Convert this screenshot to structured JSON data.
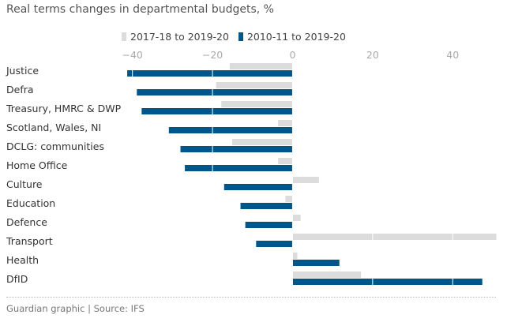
{
  "title": "Real terms changes in departmental budgets, %",
  "colors": {
    "series1": "#dcdcdc",
    "series2": "#005689",
    "text": "#333333",
    "tick": "#aaaaaa",
    "gridline": "#ffffff"
  },
  "footer": "Guardian graphic | Source: IFS",
  "chart_data": {
    "type": "bar",
    "orientation": "horizontal",
    "title": "Real terms changes in departmental budgets, %",
    "categories": [
      "Justice",
      "Defra",
      "Treasury, HMRC & DWP",
      "Scotland, Wales, NI",
      "DCLG: communities",
      "Home Office",
      "Culture",
      "Education",
      "Defence",
      "Transport",
      "Health",
      "DfID"
    ],
    "series": [
      {
        "name": "2017-18 to 2019-20",
        "color": "#dcdcdc",
        "values": [
          -15.7,
          -19.1,
          -17.8,
          -3.6,
          -15.1,
          -3.6,
          6.6,
          -1.8,
          2.0,
          50.9,
          1.2,
          17.1
        ]
      },
      {
        "name": "2010-11 to 2019-20",
        "color": "#005689",
        "values": [
          -41.3,
          -38.9,
          -37.7,
          -30.9,
          -28.0,
          -26.9,
          -17.1,
          -13.0,
          -11.8,
          -9.1,
          11.7,
          47.4
        ]
      }
    ],
    "xlim": [
      -42.5,
      51
    ],
    "xticks": [
      -40,
      -20,
      0,
      20,
      40
    ],
    "xlabel": "",
    "ylabel": "",
    "grid": true,
    "legend": "top"
  }
}
